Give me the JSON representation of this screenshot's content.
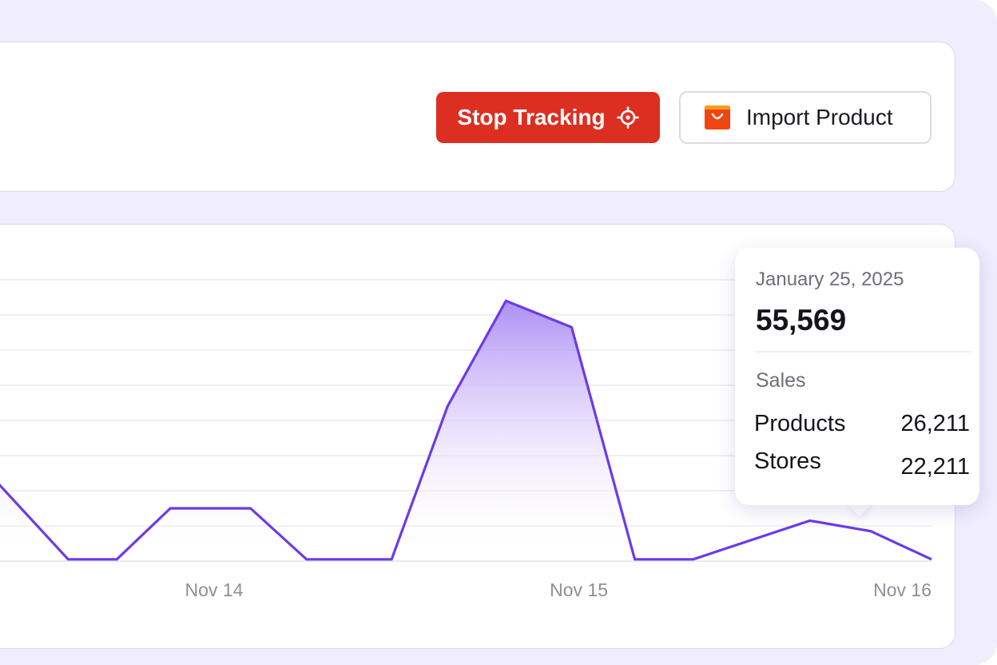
{
  "actions": {
    "stop_tracking_label": "Stop Tracking",
    "import_product_label": "Import Product"
  },
  "colors": {
    "page_bg": "#efedfe",
    "stop_button": "#dc2f22",
    "line": "#6d3ae8",
    "shop_icon": "#f0450f"
  },
  "icons": {
    "stop": "crosshair-icon",
    "import": "shopping-bag-icon"
  },
  "tooltip": {
    "date": "January 25, 2025",
    "total": "55,569",
    "section": "Sales",
    "rows": [
      {
        "label": "Products",
        "value": "26,211"
      },
      {
        "label": "Stores",
        "value": "22,211"
      }
    ]
  },
  "chart_data": {
    "type": "area",
    "x_tick_labels": [
      "Nov 14",
      "Nov 15",
      "Nov 16"
    ],
    "x_tick_positions": [
      0.9,
      2.4,
      3.85
    ],
    "x_range": [
      0,
      3.85
    ],
    "y_range": [
      0,
      8
    ],
    "grid": true,
    "grid_lines": 8,
    "series": [
      {
        "x": [
          0,
          0.3,
          0.5,
          0.72,
          1.05,
          1.28,
          1.63,
          1.86,
          2.1,
          2.37,
          2.63,
          2.87,
          3.35,
          3.6,
          3.85
        ],
        "y": [
          2.3,
          0.05,
          0.05,
          1.5,
          1.5,
          0.05,
          0.05,
          4.4,
          7.4,
          6.65,
          0.05,
          0.05,
          1.15,
          0.85,
          0.05
        ]
      }
    ]
  }
}
